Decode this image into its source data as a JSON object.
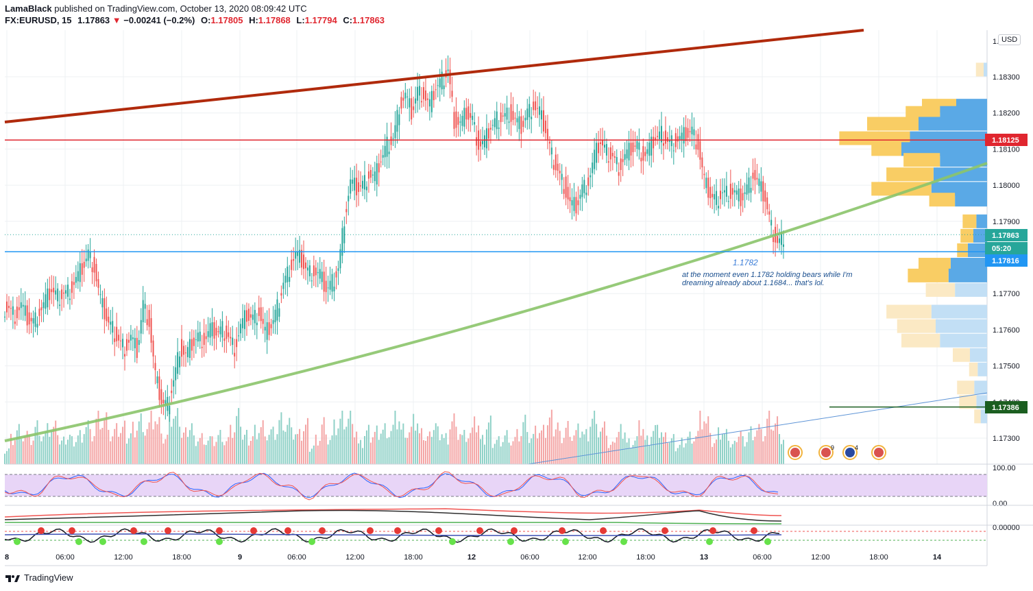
{
  "header": {
    "author": "LamaBlack",
    "published_text": "published on TradingView.com, October 13, 2020 08:09:42 UTC",
    "symbol": "FX:EURUSD, 15",
    "last": "1.17863",
    "change": "−0.00241 (−0.2%)",
    "open_label": "O:",
    "open": "1.17805",
    "high_label": "H:",
    "high": "1.17868",
    "low_label": "L:",
    "low": "1.17794",
    "close_label": "C:",
    "close": "1.17863"
  },
  "currency_button": "USD",
  "footer": {
    "brand": "TradingView"
  },
  "chart_data": {
    "type": "candlestick",
    "symbol": "FX:EURUSD",
    "timeframe": "15",
    "ylim": [
      1.1725,
      1.184
    ],
    "y_ticks": [
      "1.18300",
      "1.18200",
      "1.18100",
      "1.18000",
      "1.17900",
      "1.17700",
      "1.17600",
      "1.17500",
      "1.17400",
      "1.17300"
    ],
    "top_tick_partial": "1.1",
    "x_ticks": [
      "8",
      "06:00",
      "12:00",
      "18:00",
      "9",
      "06:00",
      "12:00",
      "18:00",
      "12",
      "06:00",
      "12:00",
      "18:00",
      "13",
      "06:00",
      "12:00",
      "18:00",
      "14"
    ],
    "price_badges": [
      {
        "label": "1.18125",
        "value": 1.18125,
        "color": "#e0262f"
      },
      {
        "label": "1.17863",
        "value": 1.17863,
        "color": "#26a69a"
      },
      {
        "label": "05:20",
        "value": 1.17842,
        "color": "#26a69a"
      },
      {
        "label": "1.17816",
        "value": 1.17816,
        "color": "#2196f3"
      },
      {
        "label": "1.17386",
        "value": 1.17386,
        "color": "#1b5e20"
      }
    ],
    "horizontal_lines": [
      {
        "value": 1.18125,
        "color": "#e0262f"
      },
      {
        "value": 1.17816,
        "color": "#2196f3"
      }
    ],
    "annotation_level": "1.1782",
    "annotation_text": [
      "at the moment even 1.1782 holding bears while I'm",
      "dreaming already about 1.1684... that's lol."
    ],
    "closes": [
      1.1766,
      1.1764,
      1.1767,
      1.1763,
      1.1762,
      1.1765,
      1.1768,
      1.1771,
      1.1769,
      1.177,
      1.1771,
      1.1774,
      1.1777,
      1.1781,
      1.1777,
      1.1768,
      1.1763,
      1.176,
      1.1757,
      1.1755,
      1.1758,
      1.1754,
      1.1767,
      1.1762,
      1.1747,
      1.174,
      1.1739,
      1.1746,
      1.1755,
      1.1753,
      1.1756,
      1.1758,
      1.1757,
      1.176,
      1.1759,
      1.176,
      1.1758,
      1.1755,
      1.1761,
      1.1764,
      1.1763,
      1.1765,
      1.1759,
      1.1761,
      1.1766,
      1.1773,
      1.1777,
      1.1781,
      1.1779,
      1.1776,
      1.1776,
      1.1775,
      1.1771,
      1.1773,
      1.1777,
      1.1791,
      1.1801,
      1.1799,
      1.18,
      1.1803,
      1.1802,
      1.1807,
      1.1811,
      1.1813,
      1.1822,
      1.1825,
      1.182,
      1.1826,
      1.1825,
      1.1822,
      1.1827,
      1.1829,
      1.1832,
      1.1818,
      1.1817,
      1.182,
      1.1818,
      1.1811,
      1.1812,
      1.1816,
      1.1818,
      1.1819,
      1.182,
      1.1818,
      1.1816,
      1.182,
      1.1822,
      1.182,
      1.1815,
      1.1808,
      1.1804,
      1.18,
      1.1795,
      1.1794,
      1.1799,
      1.1801,
      1.1808,
      1.1812,
      1.1809,
      1.1808,
      1.1805,
      1.1808,
      1.181,
      1.1811,
      1.1808,
      1.181,
      1.1813,
      1.1814,
      1.1812,
      1.1812,
      1.1813,
      1.1814,
      1.1815,
      1.1811,
      1.1801,
      1.1797,
      1.1796,
      1.1798,
      1.1798,
      1.1798,
      1.1796,
      1.1799,
      1.1803,
      1.18,
      1.1796,
      1.1788,
      1.1784,
      1.1786
    ],
    "volume_max": 200,
    "volume_profile": [
      {
        "price": 1.1832,
        "buy": 18,
        "sell": 8
      },
      {
        "price": 1.1822,
        "buy": 80,
        "sell": 72
      },
      {
        "price": 1.182,
        "buy": 80,
        "sell": 110
      },
      {
        "price": 1.1817,
        "buy": 120,
        "sell": 160
      },
      {
        "price": 1.1813,
        "buy": 165,
        "sell": 180
      },
      {
        "price": 1.181,
        "buy": 70,
        "sell": 200
      },
      {
        "price": 1.1807,
        "buy": 85,
        "sell": 110
      },
      {
        "price": 1.1803,
        "buy": 110,
        "sell": 125
      },
      {
        "price": 1.1799,
        "buy": 140,
        "sell": 130
      },
      {
        "price": 1.1796,
        "buy": 60,
        "sell": 75
      },
      {
        "price": 1.179,
        "buy": 32,
        "sell": 25
      },
      {
        "price": 1.1786,
        "buy": 30,
        "sell": 32
      },
      {
        "price": 1.1782,
        "buy": 25,
        "sell": 45
      },
      {
        "price": 1.1778,
        "buy": 75,
        "sell": 85
      },
      {
        "price": 1.1775,
        "buy": 95,
        "sell": 90
      },
      {
        "price": 1.1771,
        "buy": 68,
        "sell": 75
      },
      {
        "price": 1.1765,
        "buy": 105,
        "sell": 130
      },
      {
        "price": 1.1761,
        "buy": 90,
        "sell": 120
      },
      {
        "price": 1.1757,
        "buy": 90,
        "sell": 110
      },
      {
        "price": 1.1753,
        "buy": 40,
        "sell": 40
      },
      {
        "price": 1.1749,
        "buy": 20,
        "sell": 22
      },
      {
        "price": 1.1744,
        "buy": 40,
        "sell": 30
      },
      {
        "price": 1.174,
        "buy": 40,
        "sell": 25
      },
      {
        "price": 1.1736,
        "buy": 15,
        "sell": 15
      }
    ],
    "oscillator_ticks": [
      "100.00",
      "0.00"
    ],
    "third_pane_tick": "0.00000",
    "event_badges": [
      {
        "label": "",
        "kind": "eu-us"
      },
      {
        "label": "9",
        "kind": "us"
      },
      {
        "label": "4",
        "kind": "eu"
      },
      {
        "label": "",
        "kind": "us"
      }
    ]
  }
}
